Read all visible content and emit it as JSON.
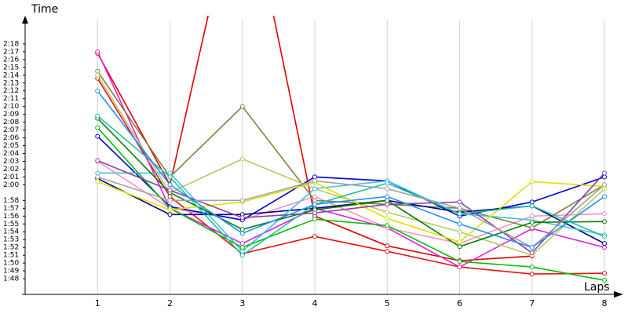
{
  "chart_data": {
    "type": "line",
    "x_label": "Laps",
    "y_label": "Time",
    "x": [
      1,
      2,
      3,
      4,
      5,
      6,
      7,
      8
    ],
    "xlim": [
      0,
      8
    ],
    "xticks": [
      1,
      2,
      3,
      4,
      5,
      6,
      7,
      8
    ],
    "ylim": [
      106,
      141
    ],
    "yticks": [
      {
        "value": 108,
        "label": "1:48"
      },
      {
        "value": 109,
        "label": "1:49"
      },
      {
        "value": 110,
        "label": "1:50"
      },
      {
        "value": 111,
        "label": "1:51"
      },
      {
        "value": 112,
        "label": "1:52"
      },
      {
        "value": 113,
        "label": "1:53"
      },
      {
        "value": 114,
        "label": "1:54"
      },
      {
        "value": 115,
        "label": "1:55"
      },
      {
        "value": 116,
        "label": "1:56"
      },
      {
        "value": 117,
        "label": "1:57"
      },
      {
        "value": 118,
        "label": "1:58"
      },
      {
        "value": 120,
        "label": "2:00"
      },
      {
        "value": 121,
        "label": "2:01"
      },
      {
        "value": 122,
        "label": "2:02"
      },
      {
        "value": 123,
        "label": "2:03"
      },
      {
        "value": 124,
        "label": "2:04"
      },
      {
        "value": 125,
        "label": "2:05"
      },
      {
        "value": 126,
        "label": "2:06"
      },
      {
        "value": 127,
        "label": "2:07"
      },
      {
        "value": 128,
        "label": "2:08"
      },
      {
        "value": 129,
        "label": "2:09"
      },
      {
        "value": 130,
        "label": "2:10"
      },
      {
        "value": 131,
        "label": "2:11"
      },
      {
        "value": 132,
        "label": "2:12"
      },
      {
        "value": 133,
        "label": "2:13"
      },
      {
        "value": 134,
        "label": "2:14"
      },
      {
        "value": 135,
        "label": "2:15"
      },
      {
        "value": 136,
        "label": "2:16"
      },
      {
        "value": 137,
        "label": "2:17"
      },
      {
        "value": 138,
        "label": "2:18"
      }
    ],
    "grid": "x",
    "series": [
      {
        "color": "#e00000",
        "values": [
          136.8,
          120,
          161,
          116,
          112.2,
          110.3,
          110.9,
          null
        ]
      },
      {
        "color": "#e81010",
        "values": [
          133.6,
          118.5,
          111.2,
          113.4,
          111.5,
          109.5,
          108.6,
          108.7
        ]
      },
      {
        "color": "#e020e0",
        "values": [
          137,
          117,
          112.5,
          117,
          114.5,
          109.5,
          114.4,
          112
        ]
      },
      {
        "color": "#ff90c8",
        "values": [
          123,
          117,
          115.5,
          118.5,
          114.5,
          112.5,
          116,
          116.3
        ]
      },
      {
        "color": "#808040",
        "values": [
          134.5,
          121,
          130,
          118,
          117.5,
          117,
          114.5,
          120
        ]
      },
      {
        "color": "#b8c868",
        "values": [
          134,
          119,
          123.3,
          119.5,
          116.5,
          114,
          111,
          119.5
        ]
      },
      {
        "color": "#0000e0",
        "values": [
          126.2,
          117.2,
          115.5,
          121,
          120.5,
          116,
          117.8,
          121
        ]
      },
      {
        "color": "#000080",
        "values": [
          120.8,
          116.2,
          116.2,
          117,
          118,
          116.5,
          117.3,
          112.5
        ]
      },
      {
        "color": "#40c0e0",
        "values": [
          121.5,
          121.5,
          111.5,
          119.5,
          120.5,
          116.3,
          115.5,
          113.6
        ]
      },
      {
        "color": "#00c000",
        "values": [
          127.3,
          117,
          112,
          115.6,
          114.8,
          110.2,
          109.5,
          107.8
        ]
      },
      {
        "color": "#008000",
        "values": [
          128.5,
          119,
          114.3,
          116.8,
          118,
          112.1,
          115.2,
          115.3
        ]
      },
      {
        "color": "#e0e000",
        "values": [
          120.4,
          116.8,
          117.8,
          120.3,
          115.7,
          112.7,
          120.4,
          119.8
        ]
      },
      {
        "color": "#9040a0",
        "values": [
          123.1,
          119.3,
          115.8,
          116.4,
          117.5,
          117.8,
          111.3,
          121.5
        ]
      },
      {
        "color": "#20c0a0",
        "values": [
          128.8,
          121,
          111,
          117.5,
          120.2,
          116.3,
          117.3,
          113.4
        ]
      },
      {
        "color": "#a0a0a0",
        "values": [
          121,
          118,
          118,
          120.5,
          119.5,
          117,
          112,
          120
        ]
      },
      {
        "color": "#2090ff",
        "values": [
          132,
          120,
          113.8,
          117.5,
          118.5,
          115,
          112,
          118.5
        ]
      }
    ]
  }
}
